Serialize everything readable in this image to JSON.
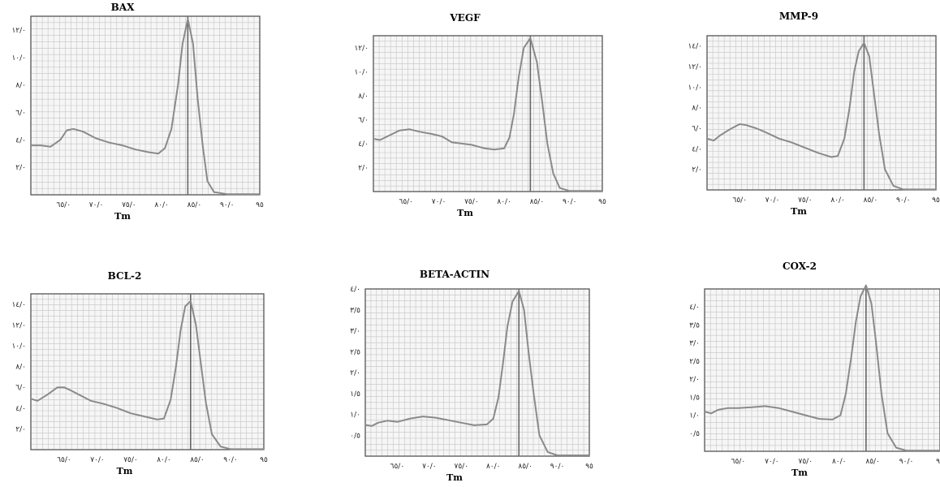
{
  "chart_data": [
    {
      "type": "line",
      "title": "BAX",
      "xlabel": "Tm",
      "xlim": [
        60,
        95
      ],
      "ylim": [
        0,
        13
      ],
      "x_ticks": [
        65,
        70,
        75,
        80,
        85,
        90,
        95
      ],
      "x_tick_labels": [
        "٦٥/٠",
        "٧٠/٠",
        "٧٥/٠",
        "٨٠/٠",
        "٨٥/٠",
        "٩٠/٠",
        "٩٥"
      ],
      "y_ticks": [
        2,
        4,
        6,
        8,
        10,
        12
      ],
      "y_tick_labels": [
        "٢/٠",
        "٤/٠",
        "٦/٠",
        "٨/٠",
        "١٠/٠",
        "١٢/٠"
      ],
      "peak_line": 84,
      "grid": true,
      "series": [
        {
          "x": [
            60,
            61.5,
            63,
            64.5,
            65.5,
            66.5,
            68,
            70,
            72,
            74,
            76,
            78,
            79.5,
            80.5,
            81.5,
            82.5,
            83.2,
            84,
            84.8,
            85.5,
            86.3,
            87,
            88,
            90,
            95
          ],
          "values": [
            3.6,
            3.6,
            3.5,
            4.0,
            4.7,
            4.8,
            4.6,
            4.1,
            3.8,
            3.6,
            3.3,
            3.1,
            3.0,
            3.4,
            4.8,
            8.0,
            11.0,
            12.8,
            11.0,
            7.0,
            3.5,
            1.0,
            0.2,
            0.05,
            0.05
          ]
        }
      ]
    },
    {
      "type": "line",
      "title": "VEGF",
      "xlabel": "Tm",
      "xlim": [
        60,
        95
      ],
      "ylim": [
        0,
        13
      ],
      "x_ticks": [
        65,
        70,
        75,
        80,
        85,
        90,
        95
      ],
      "x_tick_labels": [
        "٦٥/٠",
        "٧٠/٠",
        "٧٥/٠",
        "٨٠/٠",
        "٨٥/٠",
        "٩٠/٠",
        "٩٥"
      ],
      "y_ticks": [
        2,
        4,
        6,
        8,
        10,
        12
      ],
      "y_tick_labels": [
        "٢/٠",
        "٤/٠",
        "٦/٠",
        "٨/٠",
        "١٠/٠",
        "١٢/٠"
      ],
      "peak_line": 84,
      "grid": true,
      "series": [
        {
          "x": [
            60,
            61,
            62.5,
            64,
            65.5,
            67,
            69,
            70.5,
            72,
            73.5,
            75,
            77,
            78.5,
            80,
            80.8,
            81.5,
            82.2,
            83,
            84,
            85,
            85.8,
            86.6,
            87.5,
            88.5,
            90,
            95
          ],
          "values": [
            4.4,
            4.3,
            4.7,
            5.1,
            5.2,
            5.0,
            4.8,
            4.6,
            4.1,
            4.0,
            3.9,
            3.6,
            3.5,
            3.6,
            4.5,
            6.5,
            9.5,
            12.0,
            12.8,
            10.8,
            7.5,
            4.0,
            1.5,
            0.3,
            0.05,
            0.05
          ]
        }
      ]
    },
    {
      "type": "line",
      "title": "MMP-9",
      "xlabel": "Tm",
      "xlim": [
        60,
        95
      ],
      "ylim": [
        0,
        15
      ],
      "x_ticks": [
        65,
        70,
        75,
        80,
        85,
        90,
        95
      ],
      "x_tick_labels": [
        "٦٥/٠",
        "٧٠/٠",
        "٧٥/٠",
        "٨٠/٠",
        "٨٥/٠",
        "٩٠/٠",
        "٩٥"
      ],
      "y_ticks": [
        2,
        4,
        6,
        8,
        10,
        12,
        14
      ],
      "y_tick_labels": [
        "٢/٠",
        "٤/٠",
        "٦/٠",
        "٨/٠",
        "١٠/٠",
        "١٢/٠",
        "١٤/٠"
      ],
      "peak_line": 84,
      "grid": true,
      "series": [
        {
          "x": [
            60,
            61,
            62,
            63.5,
            65,
            66,
            67.5,
            69,
            71,
            73,
            75,
            77,
            79,
            80,
            81,
            81.8,
            82.5,
            83.2,
            84,
            84.8,
            85.5,
            86.3,
            87.2,
            88.5,
            90,
            95
          ],
          "values": [
            5.0,
            4.8,
            5.3,
            5.9,
            6.4,
            6.3,
            6.0,
            5.6,
            5.0,
            4.6,
            4.1,
            3.6,
            3.2,
            3.3,
            5.0,
            8.0,
            11.5,
            13.5,
            14.3,
            13.0,
            9.5,
            5.5,
            2.0,
            0.4,
            0.05,
            0.05
          ]
        }
      ]
    },
    {
      "type": "line",
      "title": "BCL-2",
      "xlabel": "Tm",
      "xlim": [
        60,
        95
      ],
      "ylim": [
        0,
        15
      ],
      "x_ticks": [
        65,
        70,
        75,
        80,
        85,
        90,
        95
      ],
      "x_tick_labels": [
        "٦٥/٠",
        "٧٠/٠",
        "٧٥/٠",
        "٨٠/٠",
        "٨٥/٠",
        "٩٠/٠",
        "٩٥"
      ],
      "y_ticks": [
        2,
        4,
        6,
        8,
        10,
        12,
        14
      ],
      "y_tick_labels": [
        "٢/٠",
        "٤/٠",
        "٦/٠",
        "٨/٠",
        "١٠/٠",
        "١٢/٠",
        "١٤/٠"
      ],
      "peak_line": 84,
      "grid": true,
      "series": [
        {
          "x": [
            60,
            61,
            62.5,
            64,
            65,
            66,
            67.5,
            69,
            71,
            73,
            75,
            77,
            79,
            80,
            81,
            81.8,
            82.5,
            83.2,
            84,
            84.8,
            85.5,
            86.3,
            87.2,
            88.5,
            90,
            95
          ],
          "values": [
            4.9,
            4.7,
            5.3,
            6.0,
            6.0,
            5.7,
            5.2,
            4.7,
            4.4,
            4.0,
            3.5,
            3.2,
            2.9,
            3.0,
            4.8,
            8.0,
            11.5,
            13.8,
            14.3,
            12.0,
            8.5,
            4.5,
            1.5,
            0.3,
            0.05,
            0.05
          ]
        }
      ]
    },
    {
      "type": "line",
      "title": "BETA-ACTIN",
      "xlabel": "Tm",
      "xlim": [
        60,
        95
      ],
      "ylim": [
        0,
        4
      ],
      "x_ticks": [
        65,
        70,
        75,
        80,
        85,
        90,
        95
      ],
      "x_tick_labels": [
        "٦٥/٠",
        "٧٠/٠",
        "٧٥/٠",
        "٨٠/٠",
        "٨٥/٠",
        "٩٠/٠",
        "٩٥"
      ],
      "y_ticks": [
        0.5,
        1,
        1.5,
        2,
        2.5,
        3,
        3.5,
        4
      ],
      "y_tick_labels": [
        "٠/٥",
        "١/٠",
        "١/٥",
        "٢/٠",
        "٢/٥",
        "٣/٠",
        "٣/٥",
        "٤/٠"
      ],
      "peak_line": 84,
      "grid": true,
      "series": [
        {
          "x": [
            60,
            61,
            62,
            63.5,
            65,
            67,
            69,
            71,
            73,
            75,
            77,
            79,
            80,
            80.8,
            81.5,
            82.2,
            83,
            84,
            84.8,
            85.5,
            86.3,
            87.2,
            88.5,
            90,
            95
          ],
          "values": [
            0.75,
            0.72,
            0.8,
            0.85,
            0.82,
            0.9,
            0.95,
            0.92,
            0.86,
            0.8,
            0.74,
            0.76,
            0.9,
            1.4,
            2.2,
            3.1,
            3.7,
            3.95,
            3.5,
            2.5,
            1.5,
            0.5,
            0.1,
            0.02,
            0.02
          ]
        }
      ]
    },
    {
      "type": "line",
      "title": "COX-2",
      "xlabel": "Tm",
      "xlim": [
        60,
        95
      ],
      "ylim": [
        0,
        4.5
      ],
      "x_ticks": [
        65,
        70,
        75,
        80,
        85,
        90,
        95
      ],
      "x_tick_labels": [
        "٦٥/٠",
        "٧٠/٠",
        "٧٥/٠",
        "٨٠/٠",
        "٨٥/٠",
        "٩٠/٠",
        "٩٥"
      ],
      "y_ticks": [
        0.5,
        1,
        1.5,
        2,
        2.5,
        3,
        3.5,
        4
      ],
      "y_tick_labels": [
        "٠/٥",
        "١/٠",
        "١/٥",
        "٢/٠",
        "٢/٥",
        "٣/٠",
        "٣/٥",
        "٤/٠"
      ],
      "peak_line": 84,
      "grid": true,
      "series": [
        {
          "x": [
            60,
            61,
            62,
            63.5,
            65,
            67,
            69,
            71,
            73,
            75,
            77,
            79,
            80.2,
            81,
            81.8,
            82.5,
            83.2,
            84,
            84.8,
            85.5,
            86.3,
            87.2,
            88.5,
            90,
            95
          ],
          "values": [
            1.1,
            1.05,
            1.15,
            1.2,
            1.2,
            1.22,
            1.25,
            1.2,
            1.1,
            1.0,
            0.9,
            0.88,
            1.0,
            1.6,
            2.6,
            3.6,
            4.3,
            4.6,
            4.1,
            3.0,
            1.6,
            0.5,
            0.1,
            0.02,
            0.02
          ]
        }
      ]
    }
  ]
}
